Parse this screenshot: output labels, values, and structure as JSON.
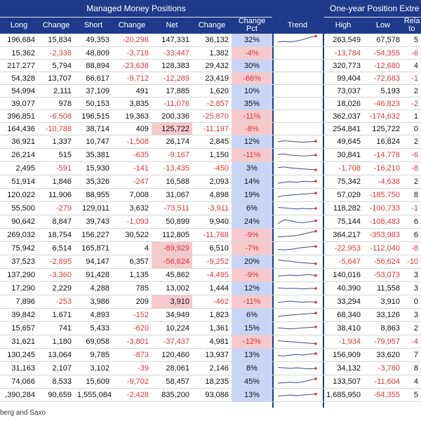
{
  "groups": {
    "managed_money": "Managed Money Positions",
    "one_year": "One-year Position Extre"
  },
  "columns": [
    "Long",
    "Change",
    "Short",
    "Change",
    "Net",
    "Change",
    "Change\nPct",
    "Trend",
    "High",
    "Low",
    "Rela\nto"
  ],
  "rows": [
    {
      "long": "196,684",
      "ch1": "15,834",
      "short": "49,353",
      "ch2": "-20,298",
      "net": "147,331",
      "ch3": "36,132",
      "pct": "32%",
      "trend": [
        0.3,
        0.35,
        0.3,
        0.4,
        0.55,
        0.75,
        0.9
      ],
      "high": "263,549",
      "low": "67,578",
      "rel": "5"
    },
    {
      "long": "15,362",
      "ch1": "-2,336",
      "short": "48,809",
      "ch2": "-3,718",
      "net": "-33,447",
      "ch3": "1,382",
      "pct": "-4%",
      "trend": null,
      "high": "-13,784",
      "low": "-54,355",
      "rel": "-6"
    },
    {
      "long": "217,277",
      "ch1": "5,794",
      "short": "88,894",
      "ch2": "-23,638",
      "net": "128,383",
      "ch3": "29,432",
      "pct": "30%",
      "trend": null,
      "high": "320,773",
      "low": "-12,680",
      "rel": "4"
    },
    {
      "long": "54,328",
      "ch1": "13,707",
      "short": "66,617",
      "ch2": "-9,712",
      "net": "-12,289",
      "ch3": "23,419",
      "pct": "-66%",
      "trend": null,
      "high": "99,404",
      "low": "-72,683",
      "rel": "-1"
    },
    {
      "long": "54,994",
      "ch1": "2,111",
      "short": "37,109",
      "ch2": "491",
      "net": "17,885",
      "ch3": "1,620",
      "pct": "10%",
      "trend": null,
      "high": "73,037",
      "low": "5,193",
      "rel": "2"
    },
    {
      "long": "39,077",
      "ch1": "978",
      "short": "50,153",
      "ch2": "3,835",
      "net": "-11,076",
      "ch3": "-2,857",
      "pct": "35%",
      "trend": null,
      "high": "18,026",
      "low": "-46,823",
      "rel": "-2"
    },
    {
      "long": "396,851",
      "ch1": "-6,508",
      "short": "196,515",
      "ch2": "19,363",
      "net": "200,336",
      "ch3": "-25,870",
      "pct": "-11%",
      "trend": null,
      "high": "362,037",
      "low": "-174,632",
      "rel": "1"
    },
    {
      "long": "164,436",
      "ch1": "-10,788",
      "short": "38,714",
      "ch2": "409",
      "net": "125,722",
      "ch3": "-11,197",
      "pct": "-8%",
      "trend": null,
      "high": "254,841",
      "low": "125,722",
      "rel": "0"
    },
    {
      "long": "36,921",
      "ch1": "1,337",
      "short": "10,747",
      "ch2": "-1,508",
      "net": "26,174",
      "ch3": "2,845",
      "pct": "12%",
      "trend": [
        0.5,
        0.6,
        0.55,
        0.5,
        0.45,
        0.5,
        0.55
      ],
      "high": "49,645",
      "low": "16,824",
      "rel": "2"
    },
    {
      "long": "26,214",
      "ch1": "515",
      "short": "35,381",
      "ch2": "-635",
      "net": "-9,167",
      "ch3": "1,150",
      "pct": "-11%",
      "trend": [
        0.55,
        0.6,
        0.5,
        0.45,
        0.4,
        0.45,
        0.5
      ],
      "high": "30,841",
      "low": "-14,778",
      "rel": "-6"
    },
    {
      "long": "2,495",
      "ch1": "-591",
      "short": "15,930",
      "ch2": "-141",
      "net": "-13,435",
      "ch3": "-450",
      "pct": "3%",
      "trend": [
        0.6,
        0.65,
        0.55,
        0.5,
        0.45,
        0.4,
        0.35
      ],
      "high": "-1,708",
      "low": "-16,210",
      "rel": "-8"
    },
    {
      "long": "51,914",
      "ch1": "1,846",
      "short": "35,326",
      "ch2": "-247",
      "net": "16,588",
      "ch3": "2,093",
      "pct": "14%",
      "trend": [
        0.35,
        0.45,
        0.5,
        0.45,
        0.55,
        0.5,
        0.55
      ],
      "high": "75,342",
      "low": "-4,638",
      "rel": "2"
    },
    {
      "long": "120,022",
      "ch1": "11,906",
      "short": "88,955",
      "ch2": "7,008",
      "net": "31,067",
      "ch3": "4,898",
      "pct": "19%",
      "trend": [
        0.3,
        0.45,
        0.5,
        0.55,
        0.6,
        0.65,
        0.7
      ],
      "high": "57,029",
      "low": "-185,750",
      "rel": "8"
    },
    {
      "long": "55,500",
      "ch1": "-279",
      "short": "129,011",
      "ch2": "3,632",
      "net": "-73,511",
      "ch3": "-3,911",
      "pct": "6%",
      "trend": [
        0.6,
        0.55,
        0.5,
        0.45,
        0.5,
        0.45,
        0.5
      ],
      "high": "118,282",
      "low": "-100,733",
      "rel": "-1"
    },
    {
      "long": "90,642",
      "ch1": "8,847",
      "short": "39,743",
      "ch2": "-1,093",
      "net": "50,899",
      "ch3": "9,940",
      "pct": "24%",
      "trend": [
        0.3,
        0.7,
        0.6,
        0.45,
        0.4,
        0.5,
        0.6
      ],
      "high": "75,144",
      "low": "-108,483",
      "rel": "6"
    },
    {
      "long": "269,032",
      "ch1": "18,754",
      "short": "156,227",
      "ch2": "30,522",
      "net": "112,805",
      "ch3": "-11,768",
      "pct": "-9%",
      "trend": [
        0.3,
        0.35,
        0.4,
        0.45,
        0.6,
        0.75,
        0.9
      ],
      "high": "364,217",
      "low": "-353,983",
      "rel": "6"
    },
    {
      "long": "75,942",
      "ch1": "6,514",
      "short": "165,871",
      "ch2": "4",
      "net": "-89,929",
      "ch3": "6,510",
      "pct": "-7%",
      "trend": [
        0.4,
        0.35,
        0.4,
        0.5,
        0.6,
        0.65,
        0.7
      ],
      "high": "-22,953",
      "low": "-112,040",
      "rel": "-8"
    },
    {
      "long": "37,523",
      "ch1": "-2,895",
      "short": "94,147",
      "ch2": "6,357",
      "net": "-56,624",
      "ch3": "-9,252",
      "pct": "20%",
      "trend": [
        0.7,
        0.6,
        0.55,
        0.45,
        0.4,
        0.35,
        0.3
      ],
      "high": "-5,647",
      "low": "-56,624",
      "rel": "-10"
    },
    {
      "long": "137,290",
      "ch1": "-3,360",
      "short": "91,428",
      "ch2": "1,135",
      "net": "45,862",
      "ch3": "-4,495",
      "pct": "-9%",
      "trend": [
        0.4,
        0.45,
        0.5,
        0.45,
        0.5,
        0.55,
        0.45
      ],
      "high": "140,016",
      "low": "-53,073",
      "rel": "3"
    },
    {
      "long": "17,290",
      "ch1": "2,229",
      "short": "4,288",
      "ch2": "785",
      "net": "13,002",
      "ch3": "1,444",
      "pct": "12%",
      "trend": [
        0.55,
        0.5,
        0.5,
        0.5,
        0.45,
        0.5,
        0.5
      ],
      "high": "40,390",
      "low": "11,558",
      "rel": "3"
    },
    {
      "long": "7,896",
      "ch1": "-253",
      "short": "3,986",
      "ch2": "209",
      "net": "3,910",
      "ch3": "-462",
      "pct": "-11%",
      "trend": [
        0.4,
        0.5,
        0.55,
        0.5,
        0.45,
        0.5,
        0.45
      ],
      "high": "33,294",
      "low": "3,910",
      "rel": "0"
    },
    {
      "long": "39,842",
      "ch1": "1,671",
      "short": "4,893",
      "ch2": "-152",
      "net": "34,949",
      "ch3": "1,823",
      "pct": "6%",
      "trend": [
        0.35,
        0.45,
        0.5,
        0.55,
        0.6,
        0.65,
        0.7
      ],
      "high": "68,340",
      "low": "33,126",
      "rel": "3"
    },
    {
      "long": "15,657",
      "ch1": "741",
      "short": "5,433",
      "ch2": "-620",
      "net": "10,224",
      "ch3": "1,361",
      "pct": "15%",
      "trend": [
        0.55,
        0.5,
        0.45,
        0.5,
        0.55,
        0.6,
        0.65
      ],
      "high": "38,410",
      "low": "8,863",
      "rel": "2"
    },
    {
      "long": "31,621",
      "ch1": "1,180",
      "short": "69,058",
      "ch2": "-3,801",
      "net": "-37,437",
      "ch3": "4,981",
      "pct": "-12%",
      "trend": [
        0.6,
        0.55,
        0.5,
        0.45,
        0.4,
        0.35,
        0.3
      ],
      "high": "-1,934",
      "low": "-79,957",
      "rel": "-4"
    },
    {
      "long": "130,245",
      "ch1": "13,064",
      "short": "9,785",
      "ch2": "-873",
      "net": "120,460",
      "ch3": "13,937",
      "pct": "13%",
      "trend": [
        0.45,
        0.4,
        0.5,
        0.55,
        0.5,
        0.6,
        0.65
      ],
      "high": "156,909",
      "low": "33,620",
      "rel": "7"
    },
    {
      "long": "31,163",
      "ch1": "2,107",
      "short": "3,102",
      "ch2": "-39",
      "net": "28,061",
      "ch3": "2,146",
      "pct": "8%",
      "trend": [
        0.6,
        0.55,
        0.5,
        0.55,
        0.5,
        0.45,
        0.5
      ],
      "high": "34,132",
      "low": "-3,780",
      "rel": "8"
    },
    {
      "long": "74,066",
      "ch1": "8,533",
      "short": "15,609",
      "ch2": "-9,702",
      "net": "58,457",
      "ch3": "18,235",
      "pct": "45%",
      "trend": [
        0.35,
        0.4,
        0.45,
        0.4,
        0.5,
        0.65,
        0.8
      ],
      "high": "133,507",
      "low": "-11,604",
      "rel": "4"
    },
    {
      "long": ",390,284",
      "ch1": "90,659",
      "short": "1,555,084",
      "ch2": "-2,428",
      "net": "835,200",
      "ch3": "93,086",
      "pct": "13%",
      "trend": [
        0.4,
        0.45,
        0.5,
        0.45,
        0.5,
        0.55,
        0.6
      ],
      "high": "1,685,950",
      "low": "-54,355",
      "rel": "5"
    }
  ],
  "neg_bg_net_rows": [
    7,
    16,
    17,
    20
  ],
  "footer": "berg and Saxo",
  "colors": {
    "header": "#1f3a8a",
    "negative": "#d63a3a",
    "pct_pos_bg": "#c9d4f6",
    "pct_neg_bg": "#f6c9cc",
    "trend_line": "#3b4a8c",
    "trend_dot": "#d63a3a"
  },
  "chart_data": {
    "type": "table",
    "columns": [
      "Long",
      "Change",
      "Short",
      "Change",
      "Net",
      "Change",
      "Change Pct",
      "Trend",
      "High",
      "Low",
      "Rela to"
    ]
  }
}
